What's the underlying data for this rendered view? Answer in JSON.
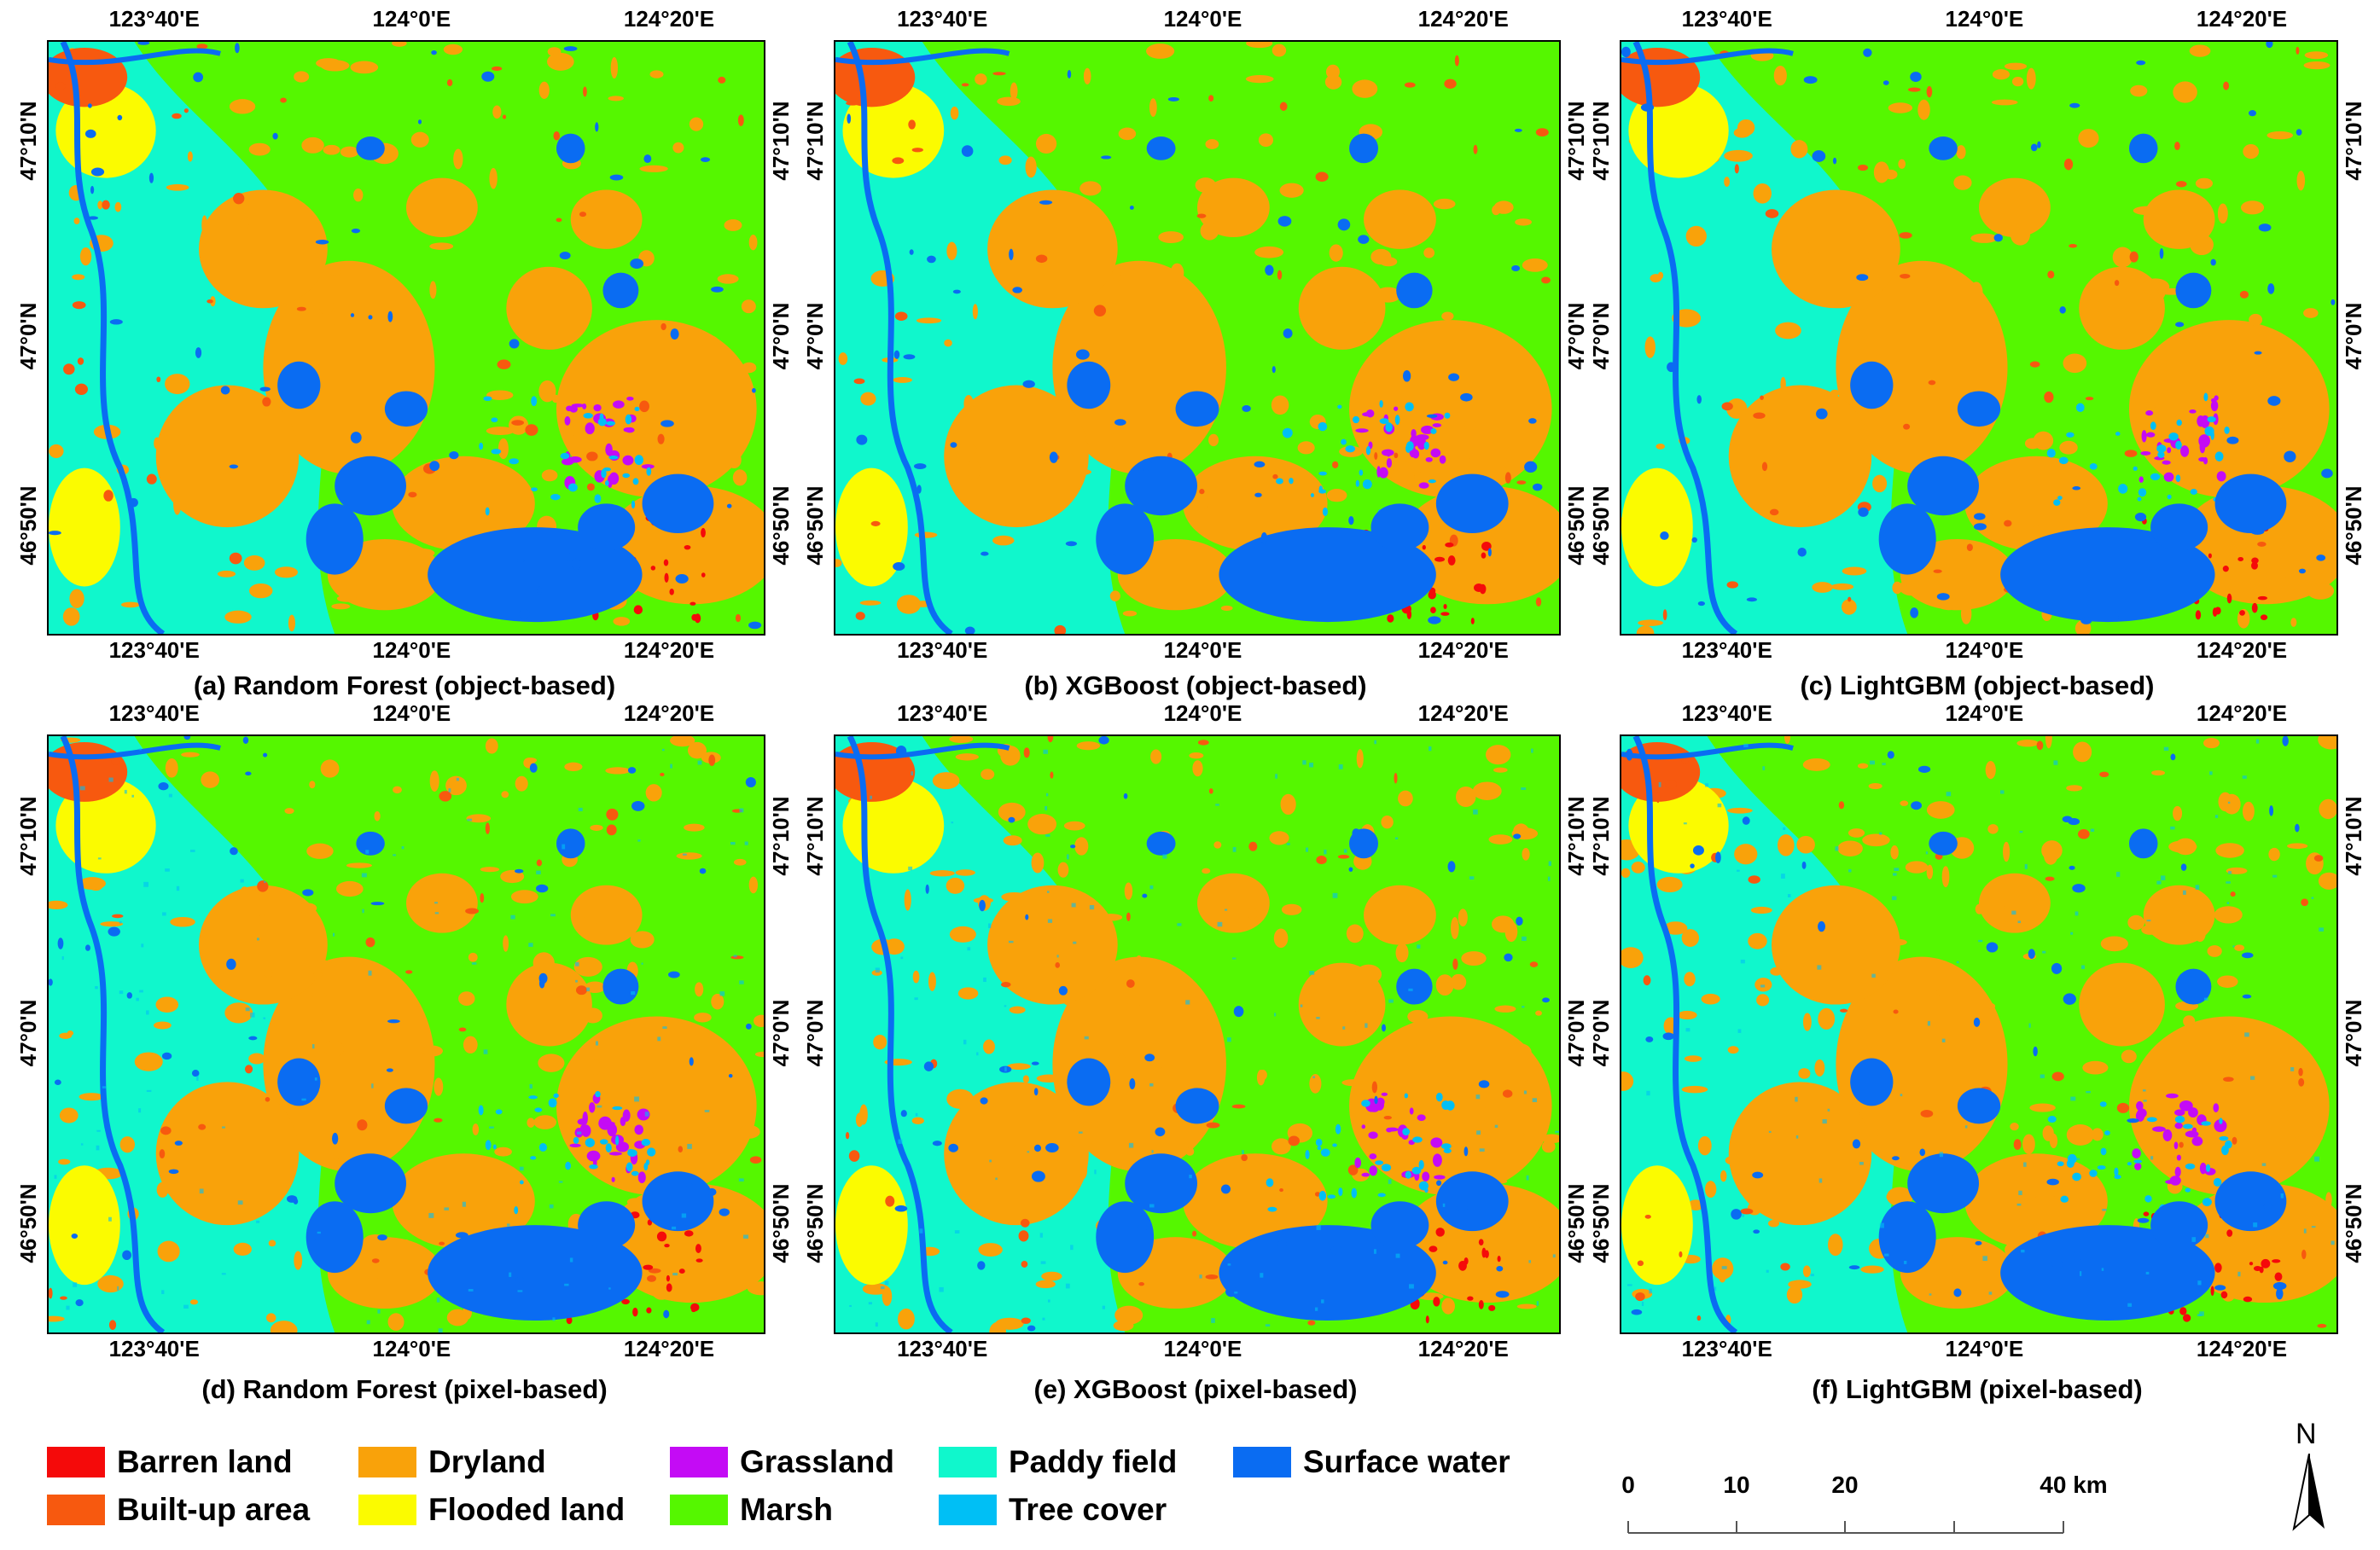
{
  "panels": [
    {
      "caption": "(a) Random Forest (object-based)",
      "lon_top": [
        "123°40'E",
        "124°0'E",
        "124°20'E"
      ],
      "lon_bottom": [
        "123°40'E",
        "124°0'E",
        "124°20'E"
      ],
      "lat_left": [
        "47°10'N",
        "47°0'N",
        "46°50'N"
      ],
      "lat_right": [
        "47°10'N",
        "47°0'N",
        "46°50'N"
      ]
    },
    {
      "caption": "(b) XGBoost (object-based)",
      "lon_top": [
        "123°40'E",
        "124°0'E",
        "124°20'E"
      ],
      "lon_bottom": [
        "123°40'E",
        "124°0'E",
        "124°20'E"
      ],
      "lat_left": [
        "47°10'N",
        "47°0'N",
        "46°50'N"
      ],
      "lat_right": [
        "47°10'N",
        "47°0'N",
        "46°50'N"
      ]
    },
    {
      "caption": "(c) LightGBM (object-based)",
      "lon_top": [
        "123°40'E",
        "124°0'E",
        "124°20'E"
      ],
      "lon_bottom": [
        "123°40'E",
        "124°0'E",
        "124°20'E"
      ],
      "lat_left": [
        "47°10'N",
        "47°0'N",
        "46°50'N"
      ],
      "lat_right": [
        "47°10'N",
        "47°0'N",
        "46°50'N"
      ]
    },
    {
      "caption": "(d) Random Forest (pixel-based)",
      "lon_top": [
        "123°40'E",
        "124°0'E",
        "124°20'E"
      ],
      "lon_bottom": [
        "123°40'E",
        "124°0'E",
        "124°20'E"
      ],
      "lat_left": [
        "47°10'N",
        "47°0'N",
        "46°50'N"
      ],
      "lat_right": [
        "47°10'N",
        "47°0'N",
        "46°50'N"
      ]
    },
    {
      "caption": "(e) XGBoost (pixel-based)",
      "lon_top": [
        "123°40'E",
        "124°0'E",
        "124°20'E"
      ],
      "lon_bottom": [
        "123°40'E",
        "124°0'E",
        "124°20'E"
      ],
      "lat_left": [
        "47°10'N",
        "47°0'N",
        "46°50'N"
      ],
      "lat_right": [
        "47°10'N",
        "47°0'N",
        "46°50'N"
      ]
    },
    {
      "caption": "(f) LightGBM (pixel-based)",
      "lon_top": [
        "123°40'E",
        "124°0'E",
        "124°20'E"
      ],
      "lon_bottom": [
        "123°40'E",
        "124°0'E",
        "124°20'E"
      ],
      "lat_left": [
        "47°10'N",
        "47°0'N",
        "46°50'N"
      ],
      "lat_right": [
        "47°10'N",
        "47°0'N",
        "46°50'N"
      ]
    }
  ],
  "legend": [
    {
      "label": "Barren land",
      "color": "#f50a0a"
    },
    {
      "label": "Built-up area",
      "color": "#f7590f"
    },
    {
      "label": "Dryland",
      "color": "#f9a20a"
    },
    {
      "label": "Flooded land",
      "color": "#fbfb00"
    },
    {
      "label": "Grassland",
      "color": "#c40bf5"
    },
    {
      "label": "Marsh",
      "color": "#55f700"
    },
    {
      "label": "Paddy field",
      "color": "#10f7cc"
    },
    {
      "label": "Tree cover",
      "color": "#00bff5"
    },
    {
      "label": "Surface water",
      "color": "#0a6cf2"
    }
  ],
  "scalebar": {
    "labels": [
      "0",
      "10",
      "20",
      "40 km"
    ]
  },
  "north_arrow": {
    "label": "N"
  }
}
